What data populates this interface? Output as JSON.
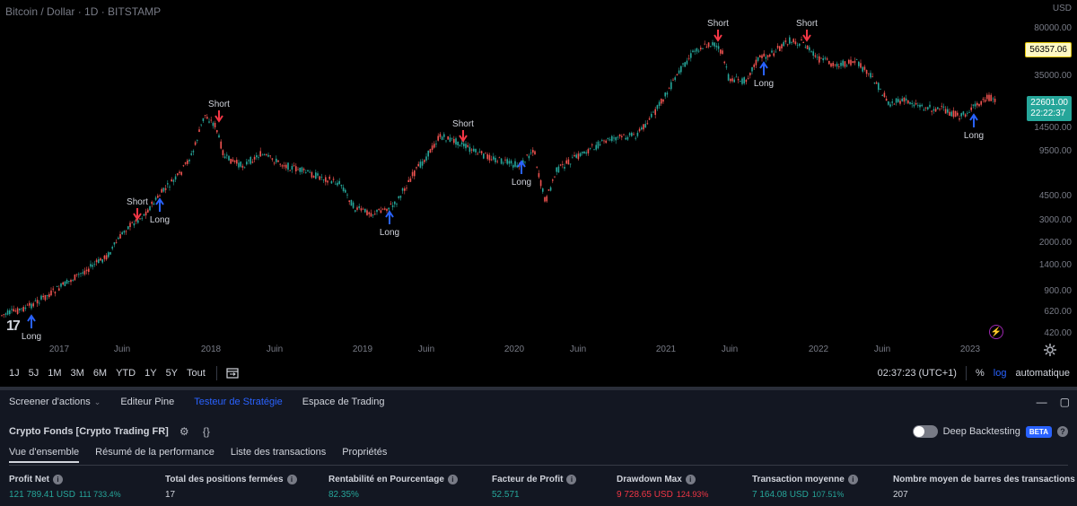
{
  "app": "TradingView",
  "chart": {
    "symbol_title": "Bitcoin / Dollar · 1D · BITSTAMP",
    "currency": "USD",
    "price_ticks": [
      "80000.00",
      "35000.00",
      "14500.00",
      "9500.00",
      "4500.00",
      "3000.00",
      "2000.00",
      "1400.00",
      "900.00",
      "620.00",
      "420.00"
    ],
    "marker_price": "56357.06",
    "last_price": "22601.00",
    "countdown": "22:22:37",
    "time_ticks": [
      "2017",
      "Juin",
      "2018",
      "Juin",
      "2019",
      "Juin",
      "2020",
      "Juin",
      "2021",
      "Juin",
      "2022",
      "Juin",
      "2023"
    ],
    "signals": [
      {
        "type": "Long",
        "label": "Long"
      },
      {
        "type": "Short",
        "label": "Short"
      },
      {
        "type": "Long",
        "label": "Long"
      },
      {
        "type": "Short",
        "label": "Short"
      },
      {
        "type": "Long",
        "label": "Long"
      },
      {
        "type": "Short",
        "label": "Short"
      },
      {
        "type": "Long",
        "label": "Long"
      },
      {
        "type": "Short",
        "label": "Short"
      },
      {
        "type": "Long",
        "label": "Long"
      },
      {
        "type": "Short",
        "label": "Short"
      },
      {
        "type": "Long",
        "label": "Long"
      }
    ],
    "colors": {
      "up": "#26a69a",
      "down": "#ef5350",
      "long": "#2962ff",
      "short": "#f23645",
      "marker_badge": "#fff9c4",
      "last_badge": "#26a69a"
    }
  },
  "toolbar": {
    "ranges": [
      "1J",
      "5J",
      "1M",
      "3M",
      "6M",
      "YTD",
      "1Y",
      "5Y",
      "Tout"
    ],
    "clock": "02:37:23 (UTC+1)",
    "percent": "%",
    "log": "log",
    "auto": "automatique"
  },
  "panel": {
    "tabs": [
      {
        "label": "Screener d'actions",
        "has_chevron": true
      },
      {
        "label": "Editeur Pine"
      },
      {
        "label": "Testeur de Stratégie",
        "active": true
      },
      {
        "label": "Espace de Trading"
      }
    ],
    "minimize": "—",
    "maximize": "▢"
  },
  "strategy": {
    "name": "Crypto Fonds [Crypto Trading FR]",
    "deep_backtesting": "Deep Backtesting",
    "beta": "BETA",
    "help": "?"
  },
  "sub_tabs": [
    "Vue d'ensemble",
    "Résumé de la performance",
    "Liste des transactions",
    "Propriétés"
  ],
  "metrics": [
    {
      "label": "Profit Net",
      "value": "121 789.41 USD",
      "sub": "111 733.4%",
      "color": "green"
    },
    {
      "label": "Total des positions fermées",
      "value": "17",
      "color": "white"
    },
    {
      "label": "Rentabilité en Pourcentage",
      "value": "82.35%",
      "color": "green"
    },
    {
      "label": "Facteur de Profit",
      "value": "52.571",
      "color": "green"
    },
    {
      "label": "Drawdown Max",
      "value": "9 728.65 USD",
      "sub": "124.93%",
      "color": "red"
    },
    {
      "label": "Transaction moyenne",
      "value": "7 164.08 USD",
      "sub": "107.51%",
      "color": "green"
    },
    {
      "label": "Nombre moyen de barres des transactions",
      "value": "207",
      "color": "white"
    }
  ]
}
